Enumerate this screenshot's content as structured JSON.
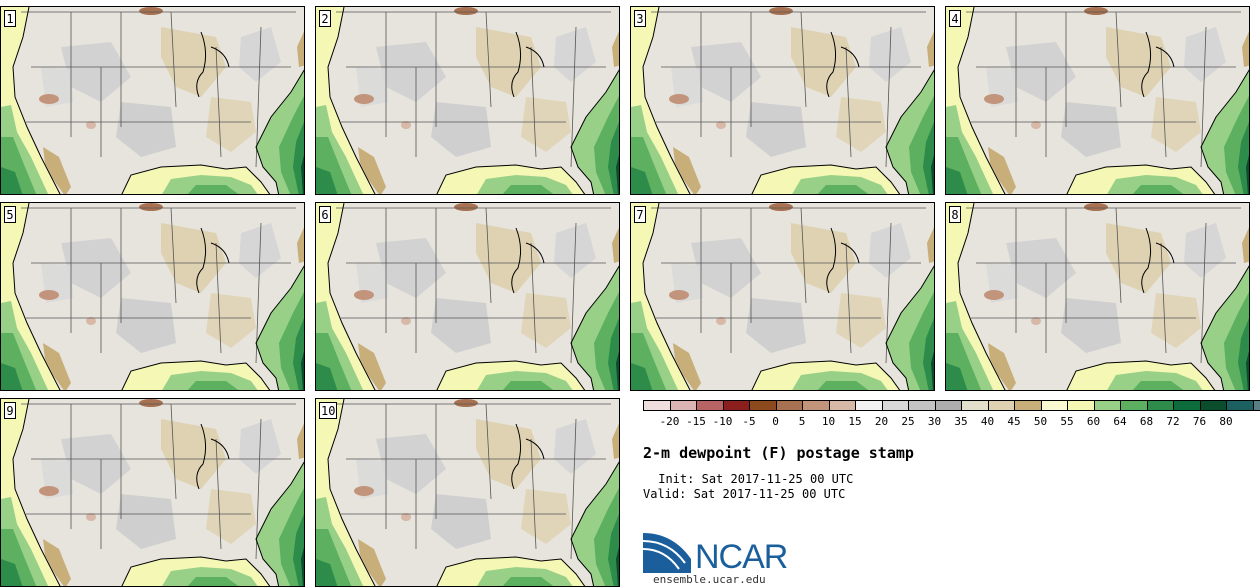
{
  "stamps": [
    {
      "label": "1"
    },
    {
      "label": "2"
    },
    {
      "label": "3"
    },
    {
      "label": "4"
    },
    {
      "label": "5"
    },
    {
      "label": "6"
    },
    {
      "label": "7"
    },
    {
      "label": "8"
    },
    {
      "label": "9"
    },
    {
      "label": "10"
    }
  ],
  "colorbar": {
    "labels": [
      "-20",
      "-15",
      "-10",
      "-5",
      "0",
      "5",
      "10",
      "15",
      "20",
      "25",
      "30",
      "35",
      "40",
      "45",
      "50",
      "55",
      "60",
      "64",
      "68",
      "72",
      "76",
      "80"
    ],
    "colors": [
      "#efdede",
      "#dcb4b4",
      "#b86464",
      "#8c1e1e",
      "#8c4a1e",
      "#a87252",
      "#c2947c",
      "#d8b8a6",
      "#f2f2f2",
      "#d9d9d9",
      "#c4c4c4",
      "#aeaeae",
      "#e2e0cc",
      "#ded2b2",
      "#c8ae78",
      "#fafad2",
      "#f4f8b4",
      "#98d088",
      "#5cb060",
      "#2e8c4a",
      "#0c6c3c",
      "#0a4e2e",
      "#1c6062",
      "#5a7e86"
    ]
  },
  "title": "2-m dewpoint (F) postage stamp",
  "init": {
    "label": " Init:",
    "value": "Sat 2017-11-25 00 UTC"
  },
  "valid": {
    "label": "Valid:",
    "value": "Sat 2017-11-25 00 UTC"
  },
  "logo": {
    "name": "NCAR",
    "url": "ensemble.ucar.edu"
  }
}
